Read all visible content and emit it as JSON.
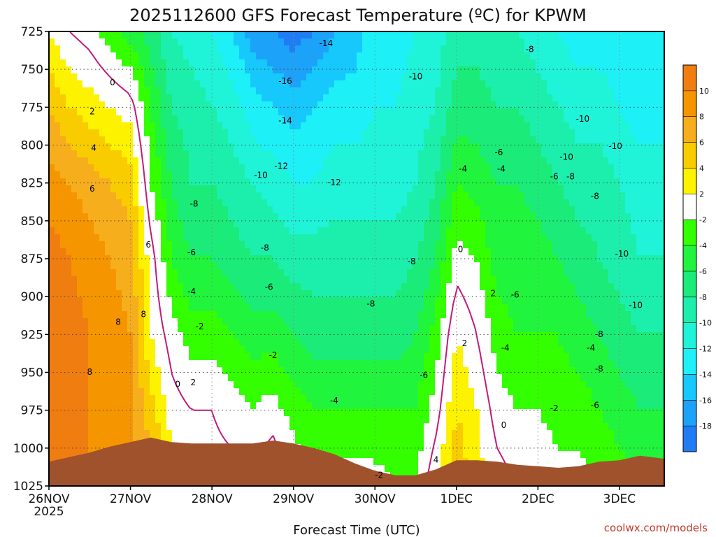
{
  "title": "2025112600 GFS Forecast Temperature (ºC) for KPWM",
  "credit": "coolwx.com/models",
  "chart_data": {
    "type": "heatmap",
    "title": "2025112600 GFS Forecast Temperature (ºC) for KPWM",
    "xlabel": "Forecast Time (UTC)",
    "ylabel": "",
    "x_unit": "days since 2025-11-26 00 UTC",
    "x_range": [
      0,
      7.55
    ],
    "y_range": [
      725,
      1025
    ],
    "y_ticks": [
      725,
      750,
      775,
      800,
      825,
      850,
      875,
      900,
      925,
      950,
      975,
      1000,
      1025
    ],
    "x_ticks": [
      {
        "x": 0,
        "label": "26NOV"
      },
      {
        "x": 1,
        "label": "27NOV"
      },
      {
        "x": 2,
        "label": "28NOV"
      },
      {
        "x": 3,
        "label": "29NOV"
      },
      {
        "x": 4,
        "label": "30NOV"
      },
      {
        "x": 5,
        "label": "1DEC"
      },
      {
        "x": 6,
        "label": "2DEC"
      },
      {
        "x": 7,
        "label": "3DEC"
      }
    ],
    "x_year_label": "2025",
    "grid": true,
    "colorbar": {
      "placement": "right",
      "levels": [
        {
          "lo": 10,
          "hi": 12,
          "color": "#f07d10"
        },
        {
          "lo": 8,
          "hi": 10,
          "color": "#f59500"
        },
        {
          "lo": 6,
          "hi": 8,
          "color": "#f7ae1c"
        },
        {
          "lo": 4,
          "hi": 6,
          "color": "#f9cc00"
        },
        {
          "lo": 2,
          "hi": 4,
          "color": "#fdf200"
        },
        {
          "lo": -2,
          "hi": 2,
          "color": "#ffffff"
        },
        {
          "lo": -4,
          "hi": -2,
          "color": "#33ff00"
        },
        {
          "lo": -6,
          "hi": -4,
          "color": "#21f43c"
        },
        {
          "lo": -8,
          "hi": -6,
          "color": "#1beb78"
        },
        {
          "lo": -10,
          "hi": -8,
          "color": "#1cefac"
        },
        {
          "lo": -12,
          "hi": -10,
          "color": "#1ff3d8"
        },
        {
          "lo": -14,
          "hi": -12,
          "color": "#1ef0f7"
        },
        {
          "lo": -16,
          "hi": -14,
          "color": "#16c8fb"
        },
        {
          "lo": -18,
          "hi": -16,
          "color": "#1ca2f8"
        },
        {
          "lo": -20,
          "hi": -18,
          "color": "#1f7cf5"
        }
      ],
      "labels": [
        10,
        8,
        6,
        4,
        2,
        -2,
        -4,
        -6,
        -8,
        -10,
        -12,
        -14,
        -16,
        -18
      ]
    },
    "ground_color": "#a0522d",
    "zero_line_color": "#c21a7a",
    "surface_pressure": {
      "x": [
        0,
        0.25,
        0.5,
        0.75,
        1.0,
        1.25,
        1.5,
        1.75,
        2.0,
        2.25,
        2.5,
        2.75,
        3.0,
        3.25,
        3.5,
        3.75,
        4.0,
        4.25,
        4.5,
        4.75,
        5.0,
        5.25,
        5.5,
        5.75,
        6.0,
        6.25,
        6.5,
        6.75,
        7.0,
        7.25,
        7.55
      ],
      "p": [
        1009,
        1006,
        1003,
        999,
        996,
        993,
        996,
        997,
        997,
        997,
        997,
        995,
        997,
        1000,
        1004,
        1010,
        1015,
        1018,
        1018,
        1014,
        1008,
        1008,
        1009,
        1011,
        1012,
        1013,
        1012,
        1009,
        1008,
        1005,
        1007
      ]
    },
    "profile_x": [
      0,
      0.25,
      0.5,
      0.75,
      1.0,
      1.25,
      1.5,
      1.75,
      2.0,
      2.25,
      2.5,
      2.75,
      3.0,
      3.25,
      3.5,
      3.75,
      4.0,
      4.25,
      4.5,
      4.75,
      5.0,
      5.25,
      5.5,
      5.75,
      6.0,
      6.25,
      6.5,
      6.75,
      7.0,
      7.25,
      7.55
    ],
    "profile_p": [
      725,
      775,
      825,
      875,
      925,
      975,
      1025
    ],
    "temperature": [
      [
        2,
        6,
        9,
        11,
        12,
        12,
        12
      ],
      [
        0,
        4,
        8,
        10,
        11,
        11,
        11
      ],
      [
        -1,
        3,
        7,
        9,
        10,
        10,
        10
      ],
      [
        -3,
        2,
        6,
        8,
        9,
        9,
        9
      ],
      [
        -5,
        1,
        5,
        7,
        8,
        8,
        8
      ],
      [
        -7,
        -4,
        -2,
        1,
        2,
        5,
        7
      ],
      [
        -10,
        -8,
        -6,
        -4,
        -1,
        1,
        3
      ],
      [
        -11,
        -9,
        -8,
        -6,
        -3,
        0,
        2
      ],
      [
        -12,
        -10,
        -8,
        -6,
        -3,
        0,
        1
      ],
      [
        -14,
        -11,
        -9,
        -7,
        -4,
        -1,
        1
      ],
      [
        -17,
        -13,
        -10,
        -8,
        -5,
        -2,
        1
      ],
      [
        -18,
        -14,
        -11,
        -8,
        -5,
        -1,
        2
      ],
      [
        -19,
        -15,
        -12,
        -9,
        -6,
        -3,
        0
      ],
      [
        -18,
        -14,
        -12,
        -9,
        -7,
        -4,
        -1
      ],
      [
        -16,
        -13,
        -11,
        -9,
        -7,
        -4,
        -1
      ],
      [
        -15,
        -13,
        -11,
        -9,
        -7,
        -4,
        -1
      ],
      [
        -13,
        -12,
        -11,
        -9,
        -7,
        -4,
        -1
      ],
      [
        -13,
        -12,
        -11,
        -9,
        -7,
        -4,
        -2
      ],
      [
        -12,
        -11,
        -10,
        -8,
        -6,
        -4,
        -2
      ],
      [
        -11,
        -10,
        -8,
        -6,
        -3,
        -1,
        2
      ],
      [
        -9,
        -7,
        -4,
        -1,
        2,
        4,
        6
      ],
      [
        -9,
        -7,
        -5,
        -2,
        0,
        2,
        3
      ],
      [
        -10,
        -8,
        -6,
        -5,
        -3,
        -1,
        1
      ],
      [
        -10,
        -8,
        -6,
        -5,
        -4,
        -2,
        0
      ],
      [
        -11,
        -9,
        -7,
        -5,
        -4,
        -2,
        0
      ],
      [
        -12,
        -10,
        -8,
        -6,
        -4,
        -3,
        -1
      ],
      [
        -13,
        -11,
        -9,
        -7,
        -5,
        -3,
        -1
      ],
      [
        -13,
        -11,
        -9,
        -8,
        -6,
        -4,
        -2
      ],
      [
        -13,
        -12,
        -10,
        -9,
        -7,
        -5,
        -3
      ],
      [
        -14,
        -13,
        -11,
        -10,
        -8,
        -6,
        -3
      ],
      [
        -14,
        -13,
        -11,
        -10,
        -8,
        -6,
        -3
      ]
    ],
    "contour_labels": [
      {
        "x": 0.78,
        "p": 759,
        "text": "0"
      },
      {
        "x": 0.53,
        "p": 778,
        "text": "2"
      },
      {
        "x": 0.55,
        "p": 802,
        "text": "4"
      },
      {
        "x": 0.53,
        "p": 829,
        "text": "6"
      },
      {
        "x": 1.22,
        "p": 866,
        "text": "6"
      },
      {
        "x": 0.85,
        "p": 917,
        "text": "8"
      },
      {
        "x": 1.16,
        "p": 912,
        "text": "8"
      },
      {
        "x": 0.5,
        "p": 950,
        "text": "8"
      },
      {
        "x": 1.58,
        "p": 958,
        "text": "0"
      },
      {
        "x": 1.77,
        "p": 957,
        "text": "2"
      },
      {
        "x": 1.78,
        "p": 839,
        "text": "-8"
      },
      {
        "x": 1.75,
        "p": 871,
        "text": "-6"
      },
      {
        "x": 1.75,
        "p": 897,
        "text": "-4"
      },
      {
        "x": 1.85,
        "p": 920,
        "text": "-2"
      },
      {
        "x": 3.4,
        "p": 733,
        "text": "-14"
      },
      {
        "x": 2.9,
        "p": 758,
        "text": "-16"
      },
      {
        "x": 2.9,
        "p": 784,
        "text": "-14"
      },
      {
        "x": 2.85,
        "p": 814,
        "text": "-12"
      },
      {
        "x": 2.6,
        "p": 820,
        "text": "-10"
      },
      {
        "x": 3.5,
        "p": 825,
        "text": "-12"
      },
      {
        "x": 2.65,
        "p": 868,
        "text": "-8"
      },
      {
        "x": 2.7,
        "p": 894,
        "text": "-6"
      },
      {
        "x": 2.75,
        "p": 939,
        "text": "-2"
      },
      {
        "x": 3.5,
        "p": 969,
        "text": "-4"
      },
      {
        "x": 3.95,
        "p": 905,
        "text": "-8"
      },
      {
        "x": 4.45,
        "p": 877,
        "text": "-8"
      },
      {
        "x": 4.6,
        "p": 952,
        "text": "-6"
      },
      {
        "x": 4.5,
        "p": 755,
        "text": "-10"
      },
      {
        "x": 4.05,
        "p": 1018,
        "text": "-2"
      },
      {
        "x": 5.08,
        "p": 816,
        "text": "-4"
      },
      {
        "x": 5.52,
        "p": 805,
        "text": "-6"
      },
      {
        "x": 5.55,
        "p": 816,
        "text": "-4"
      },
      {
        "x": 5.05,
        "p": 869,
        "text": "0"
      },
      {
        "x": 5.45,
        "p": 898,
        "text": "2"
      },
      {
        "x": 5.72,
        "p": 899,
        "text": "-6"
      },
      {
        "x": 5.6,
        "p": 934,
        "text": "-4"
      },
      {
        "x": 5.1,
        "p": 931,
        "text": "2"
      },
      {
        "x": 5.58,
        "p": 985,
        "text": "0"
      },
      {
        "x": 4.75,
        "p": 1008,
        "text": "4"
      },
      {
        "x": 5.9,
        "p": 737,
        "text": "-8"
      },
      {
        "x": 6.55,
        "p": 783,
        "text": "-10"
      },
      {
        "x": 6.35,
        "p": 808,
        "text": "-10"
      },
      {
        "x": 6.2,
        "p": 821,
        "text": "-6"
      },
      {
        "x": 6.4,
        "p": 821,
        "text": "-8"
      },
      {
        "x": 6.7,
        "p": 834,
        "text": "-8"
      },
      {
        "x": 6.95,
        "p": 801,
        "text": "-10"
      },
      {
        "x": 6.65,
        "p": 934,
        "text": "-4"
      },
      {
        "x": 6.2,
        "p": 974,
        "text": "-2"
      },
      {
        "x": 6.75,
        "p": 925,
        "text": "-8"
      },
      {
        "x": 6.75,
        "p": 948,
        "text": "-8"
      },
      {
        "x": 7.03,
        "p": 872,
        "text": "-10"
      },
      {
        "x": 7.2,
        "p": 906,
        "text": "-10"
      },
      {
        "x": 6.7,
        "p": 972,
        "text": "-6"
      }
    ]
  }
}
